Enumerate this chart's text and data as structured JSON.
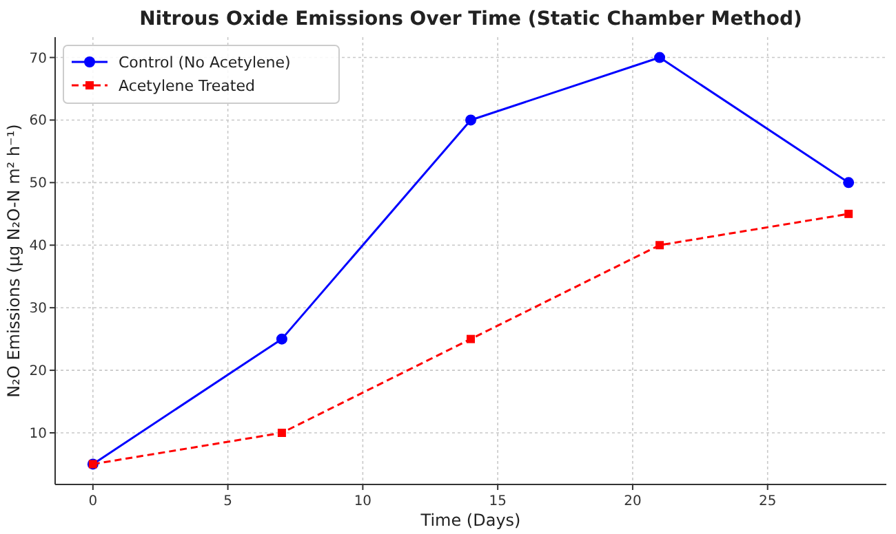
{
  "chart_data": {
    "type": "line",
    "title": "Nitrous Oxide Emissions Over Time (Static Chamber Method)",
    "xlabel": "Time (Days)",
    "ylabel": "N₂O Emissions (μg N₂O-N m² h⁻¹)",
    "x": [
      0,
      7,
      14,
      21,
      28
    ],
    "series": [
      {
        "name": "Control (No Acetylene)",
        "color": "#0000ff",
        "values": [
          5,
          25,
          60,
          70,
          50
        ],
        "marker": "circle",
        "line_style": "solid"
      },
      {
        "name": "Acetylene Treated",
        "color": "#ff0000",
        "values": [
          5,
          10,
          25,
          40,
          45
        ],
        "marker": "square",
        "line_style": "dashed"
      }
    ],
    "xlim": [
      -1.4,
      29.4
    ],
    "xticks": [
      0,
      5,
      10,
      15,
      20,
      25
    ],
    "ylim": [
      1.75,
      73.25
    ],
    "yticks": [
      10,
      20,
      30,
      40,
      50,
      60,
      70
    ],
    "grid": true,
    "legend": "top left"
  }
}
